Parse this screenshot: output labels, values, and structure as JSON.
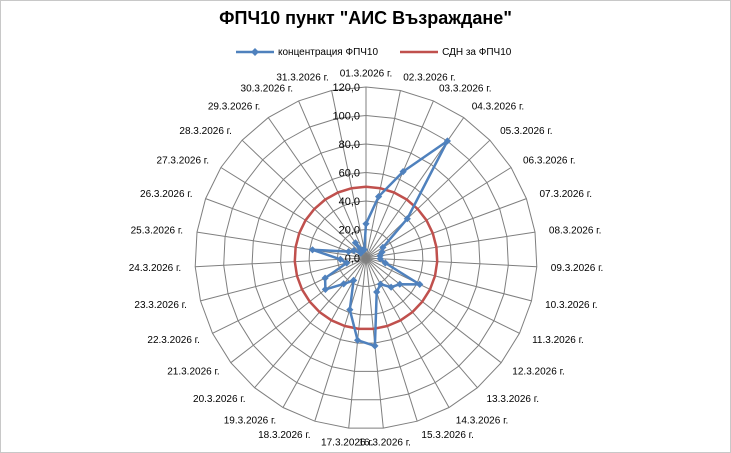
{
  "chart_data": {
    "type": "radar",
    "title": "ФПЧ10 пункт \"АИС Възраждане\"",
    "categories": [
      "01.3.2026 г.",
      "02.3.2026 г.",
      "03.3.2026 г.",
      "04.3.2026 г.",
      "05.3.2026 г.",
      "06.3.2026 г.",
      "07.3.2026 г.",
      "08.3.2026 г.",
      "09.3.2026 г.",
      "10.3.2026 г.",
      "11.3.2026 г.",
      "12.3.2026 г.",
      "13.3.2026 г.",
      "14.3.2026 г.",
      "15.3.2026 г.",
      "16.3.2026 г.",
      "17.3.2026 г.",
      "18.3.2026 г.",
      "19.3.2026 г.",
      "20.3.2026 г.",
      "21.3.2026 г.",
      "22.3.2026 г.",
      "23.3.2026 г.",
      "24.3.2026 г.",
      "25.3.2026 г.",
      "26.3.2026 г.",
      "27.3.2026 г.",
      "28.3.2026 г.",
      "29.3.2026 г.",
      "30.3.2026 г.",
      "31.3.2026 г."
    ],
    "series": [
      {
        "name": "концентрация  ФПЧ10",
        "color": "#4f81bd",
        "marker": "diamond",
        "values": [
          24,
          44,
          66,
          100,
          40,
          14,
          12,
          10,
          10,
          14,
          42,
          30,
          27,
          21,
          25,
          62,
          58,
          38,
          18,
          24,
          36,
          32,
          14,
          18,
          38,
          13,
          10,
          5,
          13,
          6,
          6
        ]
      },
      {
        "name": "СДН за ФПЧ10",
        "color": "#c0504d",
        "marker": "none",
        "values": [
          50,
          50,
          50,
          50,
          50,
          50,
          50,
          50,
          50,
          50,
          50,
          50,
          50,
          50,
          50,
          50,
          50,
          50,
          50,
          50,
          50,
          50,
          50,
          50,
          50,
          50,
          50,
          50,
          50,
          50,
          50
        ]
      }
    ],
    "rlim": [
      0,
      120
    ],
    "ticks": [
      "0,0",
      "20,0",
      "40,0",
      "60,0",
      "80,0",
      "100,0",
      "120,0"
    ],
    "tick_values": [
      0,
      20,
      40,
      60,
      80,
      100,
      120
    ],
    "grid": true,
    "legend_position": "top"
  }
}
